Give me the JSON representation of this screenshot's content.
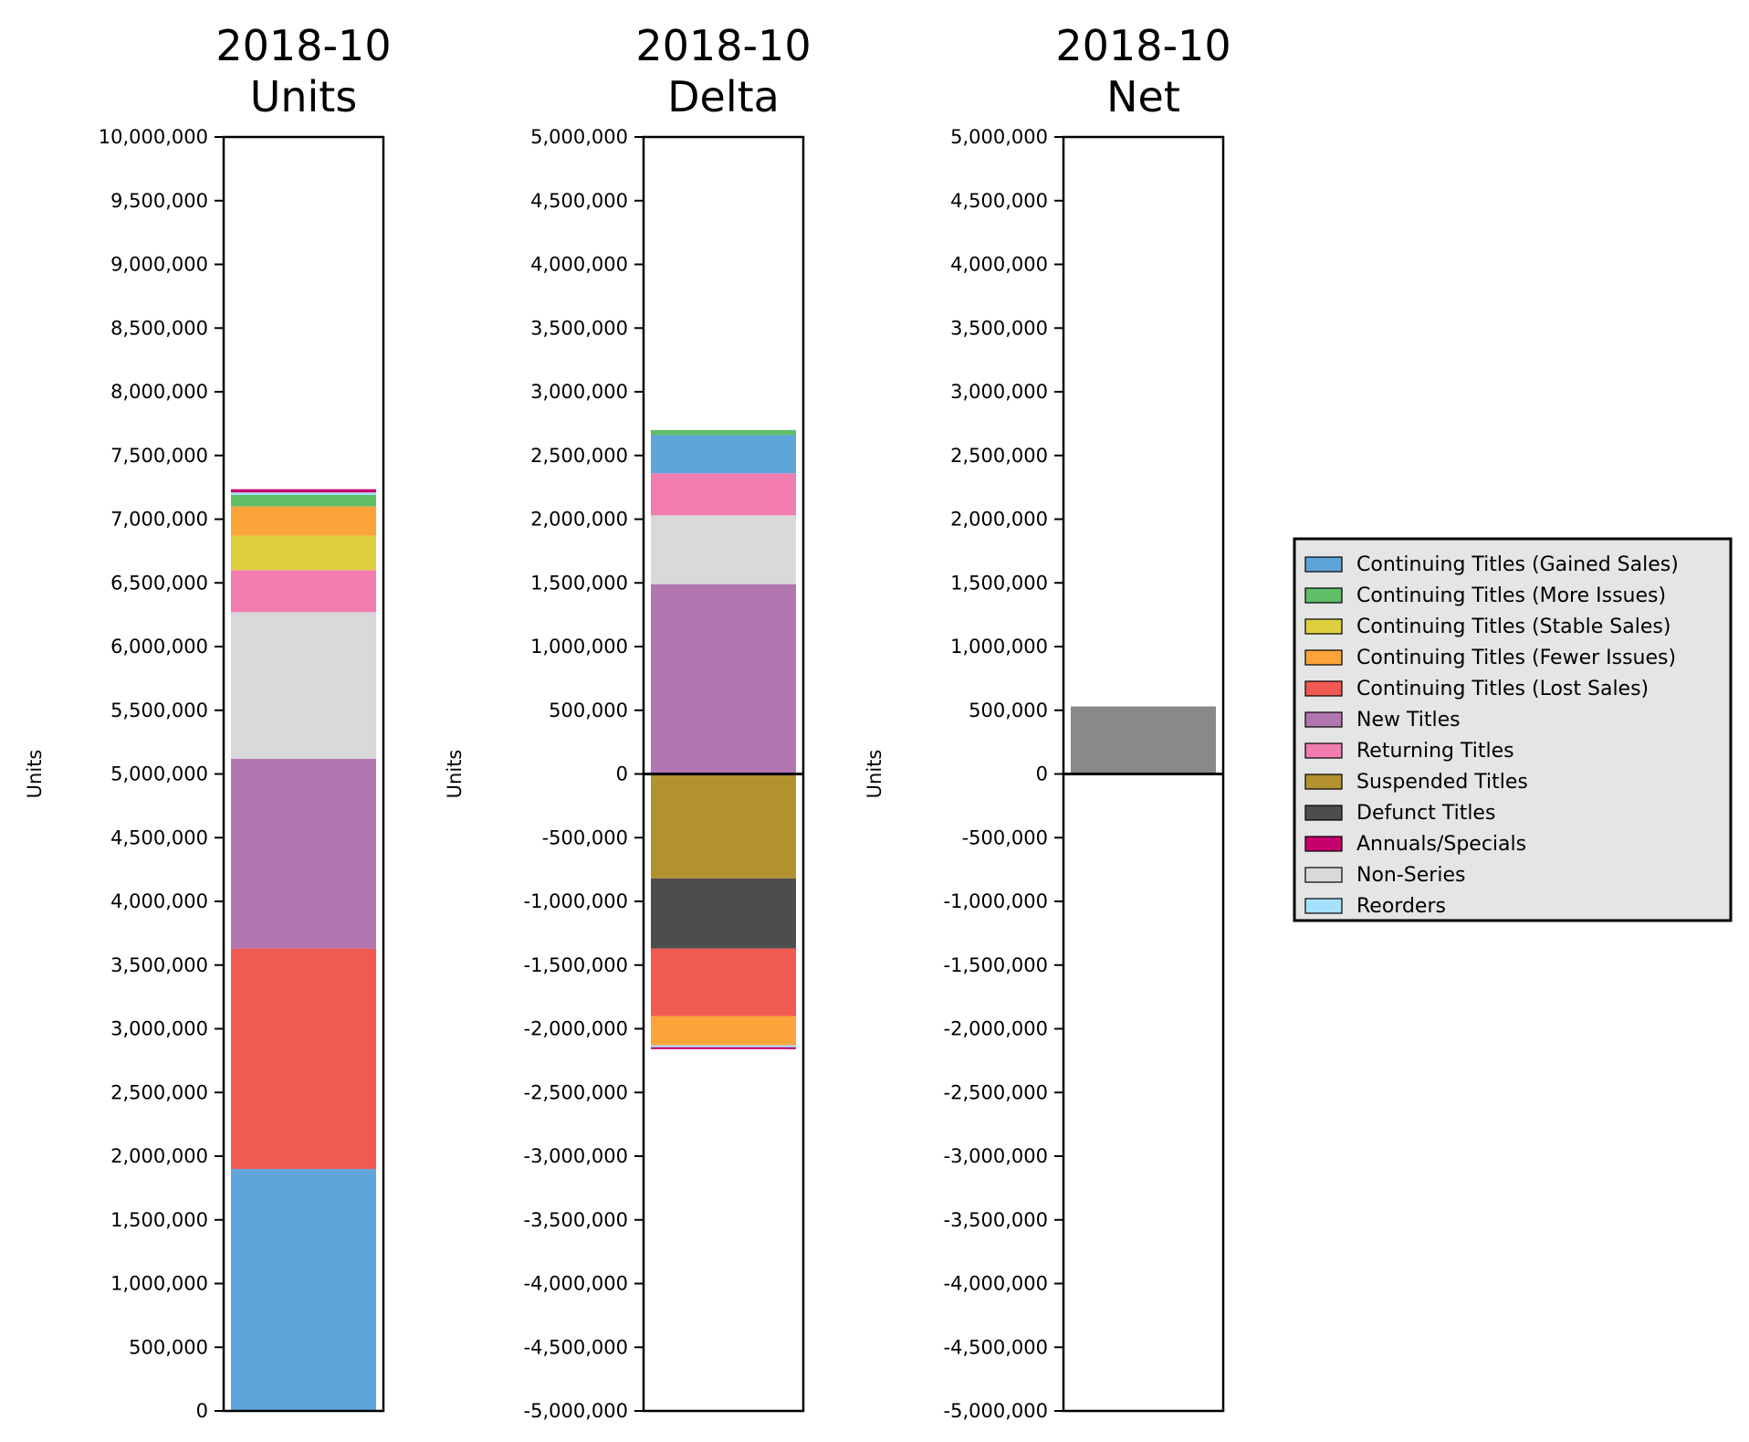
{
  "chart_data": [
    {
      "type": "bar",
      "stacked": true,
      "title": "2018-10\nUnits",
      "title_lines": [
        "2018-10",
        "Units"
      ],
      "ylabel": "Units",
      "ylim": [
        0,
        10000000
      ],
      "yticks": [
        0,
        500000,
        1000000,
        1500000,
        2000000,
        2500000,
        3000000,
        3500000,
        4000000,
        4500000,
        5000000,
        5500000,
        6000000,
        6500000,
        7000000,
        7500000,
        8000000,
        8500000,
        9000000,
        9500000,
        10000000
      ],
      "ytick_labels": [
        "0",
        "500,000",
        "1,000,000",
        "1,500,000",
        "2,000,000",
        "2,500,000",
        "3,000,000",
        "3,500,000",
        "4,000,000",
        "4,500,000",
        "5,000,000",
        "5,500,000",
        "6,000,000",
        "6,500,000",
        "7,000,000",
        "7,500,000",
        "8,000,000",
        "8,500,000",
        "9,000,000",
        "9,500,000",
        "10,000,000"
      ],
      "zero_line": false,
      "segments": [
        {
          "name": "Continuing Titles (Gained Sales)",
          "start": 0,
          "end": 1900000,
          "color": "#5fa5da"
        },
        {
          "name": "Continuing Titles (Lost Sales)",
          "start": 1900000,
          "end": 3630000,
          "color": "#f15953"
        },
        {
          "name": "New Titles",
          "start": 3630000,
          "end": 5120000,
          "color": "#b277b1"
        },
        {
          "name": "Non-Series",
          "start": 5120000,
          "end": 6270000,
          "color": "#d9d9d9"
        },
        {
          "name": "Returning Titles",
          "start": 6270000,
          "end": 6600000,
          "color": "#f17db0"
        },
        {
          "name": "Continuing Titles (Stable Sales)",
          "start": 6600000,
          "end": 6870000,
          "color": "#decf3f"
        },
        {
          "name": "Continuing Titles (Fewer Issues)",
          "start": 6870000,
          "end": 7100000,
          "color": "#faa43a"
        },
        {
          "name": "Continuing Titles (More Issues)",
          "start": 7100000,
          "end": 7190000,
          "color": "#60bd68"
        },
        {
          "name": "Reorders",
          "start": 7190000,
          "end": 7210000,
          "color": "#a6e1ff"
        },
        {
          "name": "Annuals/Specials",
          "start": 7210000,
          "end": 7235000,
          "color": "#c6006d"
        }
      ]
    },
    {
      "type": "bar",
      "stacked": true,
      "title": "2018-10\nDelta",
      "title_lines": [
        "2018-10",
        "Delta"
      ],
      "ylabel": "Units",
      "ylim": [
        -5000000,
        5000000
      ],
      "yticks": [
        -5000000,
        -4500000,
        -4000000,
        -3500000,
        -3000000,
        -2500000,
        -2000000,
        -1500000,
        -1000000,
        -500000,
        0,
        500000,
        1000000,
        1500000,
        2000000,
        2500000,
        3000000,
        3500000,
        4000000,
        4500000,
        5000000
      ],
      "ytick_labels": [
        "-5,000,000",
        "-4,500,000",
        "-4,000,000",
        "-3,500,000",
        "-3,000,000",
        "-2,500,000",
        "-2,000,000",
        "-1,500,000",
        "-1,000,000",
        "-500,000",
        "0",
        "500,000",
        "1,000,000",
        "1,500,000",
        "2,000,000",
        "2,500,000",
        "3,000,000",
        "3,500,000",
        "4,000,000",
        "4,500,000",
        "5,000,000"
      ],
      "zero_line": true,
      "segments": [
        {
          "name": "New Titles",
          "start": 0,
          "end": 1490000,
          "color": "#b277b1"
        },
        {
          "name": "Non-Series",
          "start": 1490000,
          "end": 2030000,
          "color": "#d9d9d9"
        },
        {
          "name": "Returning Titles",
          "start": 2030000,
          "end": 2360000,
          "color": "#f17db0"
        },
        {
          "name": "Continuing Titles (Gained Sales)",
          "start": 2360000,
          "end": 2660000,
          "color": "#5fa5da"
        },
        {
          "name": "Continuing Titles (More Issues)",
          "start": 2660000,
          "end": 2700000,
          "color": "#60bd68"
        },
        {
          "name": "Suspended Titles",
          "start": -820000,
          "end": 0,
          "color": "#b2912f"
        },
        {
          "name": "Defunct Titles",
          "start": -1370000,
          "end": -820000,
          "color": "#4d4d4d"
        },
        {
          "name": "Continuing Titles (Lost Sales)",
          "start": -1900000,
          "end": -1370000,
          "color": "#f15953"
        },
        {
          "name": "Continuing Titles (Fewer Issues)",
          "start": -2130000,
          "end": -1900000,
          "color": "#faa43a"
        },
        {
          "name": "Reorders",
          "start": -2145000,
          "end": -2130000,
          "color": "#a6e1ff"
        },
        {
          "name": "Annuals/Specials",
          "start": -2160000,
          "end": -2145000,
          "color": "#c6006d"
        }
      ]
    },
    {
      "type": "bar",
      "stacked": false,
      "title": "2018-10\nNet",
      "title_lines": [
        "2018-10",
        "Net"
      ],
      "ylabel": "Units",
      "ylim": [
        -5000000,
        5000000
      ],
      "yticks": [
        -5000000,
        -4500000,
        -4000000,
        -3500000,
        -3000000,
        -2500000,
        -2000000,
        -1500000,
        -1000000,
        -500000,
        0,
        500000,
        1000000,
        1500000,
        2000000,
        2500000,
        3000000,
        3500000,
        4000000,
        4500000,
        5000000
      ],
      "ytick_labels": [
        "-5,000,000",
        "-4,500,000",
        "-4,000,000",
        "-3,500,000",
        "-3,000,000",
        "-2,500,000",
        "-2,000,000",
        "-1,500,000",
        "-1,000,000",
        "-500,000",
        "0",
        "500,000",
        "1,000,000",
        "1,500,000",
        "2,000,000",
        "2,500,000",
        "3,000,000",
        "3,500,000",
        "4,000,000",
        "4,500,000",
        "5,000,000"
      ],
      "zero_line": true,
      "segments": [
        {
          "name": "Net",
          "start": 0,
          "end": 530000,
          "color": "#898989"
        }
      ]
    }
  ],
  "legend": {
    "placement": "right",
    "background": "#e5e5e5",
    "items": [
      {
        "label": "Continuing Titles (Gained Sales)",
        "color": "#5fa5da"
      },
      {
        "label": "Continuing Titles (More Issues)",
        "color": "#60bd68"
      },
      {
        "label": "Continuing Titles (Stable Sales)",
        "color": "#decf3f"
      },
      {
        "label": "Continuing Titles (Fewer Issues)",
        "color": "#faa43a"
      },
      {
        "label": "Continuing Titles (Lost Sales)",
        "color": "#f15953"
      },
      {
        "label": "New Titles",
        "color": "#b277b1"
      },
      {
        "label": "Returning Titles",
        "color": "#f17db0"
      },
      {
        "label": "Suspended Titles",
        "color": "#b2912f"
      },
      {
        "label": "Defunct Titles",
        "color": "#4d4d4d"
      },
      {
        "label": "Annuals/Specials",
        "color": "#c6006d"
      },
      {
        "label": "Non-Series",
        "color": "#d9d9d9"
      },
      {
        "label": "Reorders",
        "color": "#a6e1ff"
      }
    ]
  }
}
